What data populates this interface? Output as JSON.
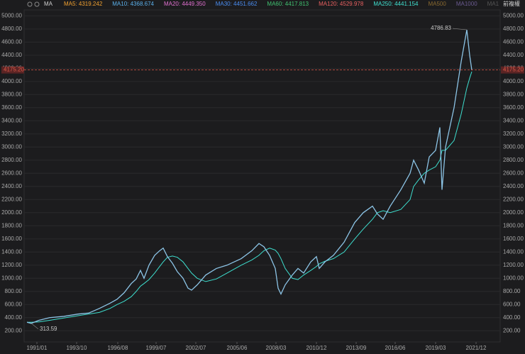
{
  "chart_data": {
    "type": "line",
    "legend": {
      "title": "MA",
      "items": [
        {
          "label": "MA5: 4319.242",
          "color": "#f0a030"
        },
        {
          "label": "MA10: 4368.674",
          "color": "#5aaee8"
        },
        {
          "label": "MA20: 4449.350",
          "color": "#e070d0"
        },
        {
          "label": "MA30: 4451.662",
          "color": "#4a8cf0"
        },
        {
          "label": "MA60: 4417.813",
          "color": "#40c070"
        },
        {
          "label": "MA120: 4529.978",
          "color": "#e86060"
        },
        {
          "label": "MA250: 4441.154",
          "color": "#40e0d0"
        },
        {
          "label": "MA500",
          "color": "#8a6a30"
        },
        {
          "label": "MA1000",
          "color": "#6a5a90"
        },
        {
          "label": "MA1",
          "color": "#555555"
        }
      ]
    },
    "adjust_label": "前複權",
    "x": [
      1990.3,
      1990.6,
      1991.15,
      1991.9,
      1992.9,
      1993.9,
      1994.65,
      1995.4,
      1996.15,
      1996.65,
      1997.15,
      1997.65,
      1998.0,
      1998.3,
      1998.55,
      1998.9,
      1999.3,
      1999.65,
      1999.9,
      2000.2,
      2000.55,
      2000.9,
      2001.3,
      2001.65,
      2001.9,
      2002.3,
      2002.9,
      2003.65,
      2004.4,
      2005.4,
      2006.15,
      2006.65,
      2007.0,
      2007.4,
      2007.8,
      2008.0,
      2008.2,
      2008.5,
      2009.0,
      2009.4,
      2009.8,
      2010.3,
      2010.7,
      2010.9,
      2011.3,
      2011.9,
      2012.65,
      2013.4,
      2014.0,
      2014.65,
      2015.0,
      2015.4,
      2015.9,
      2016.65,
      2017.3,
      2017.55,
      2017.9,
      2018.3,
      2018.65,
      2019.1,
      2019.4,
      2019.55,
      2019.8,
      2020.4,
      2020.9,
      2021.3,
      2021.5,
      2021.65
    ],
    "series": [
      {
        "color": "#8cc4e6",
        "values": [
          330,
          313.59,
          360,
          400,
          420,
          455,
          470,
          540,
          620,
          680,
          780,
          920,
          990,
          1120,
          1000,
          1200,
          1350,
          1420,
          1460,
          1330,
          1230,
          1100,
          1000,
          850,
          820,
          900,
          1050,
          1150,
          1200,
          1300,
          1420,
          1530,
          1480,
          1350,
          1150,
          850,
          760,
          900,
          1050,
          1150,
          1080,
          1250,
          1330,
          1150,
          1250,
          1350,
          1550,
          1850,
          2000,
          2100,
          1980,
          1900,
          2100,
          2350,
          2600,
          2800,
          2650,
          2450,
          2850,
          2950,
          3300,
          2350,
          3000,
          3600,
          4300,
          4786.83,
          4400,
          4175.2
        ]
      },
      {
        "color": "#3ee0d0",
        "values": [
          330,
          330,
          335,
          360,
          395,
          430,
          455,
          480,
          540,
          600,
          650,
          720,
          800,
          880,
          920,
          980,
          1080,
          1180,
          1250,
          1320,
          1340,
          1320,
          1250,
          1150,
          1080,
          1000,
          950,
          990,
          1080,
          1200,
          1280,
          1350,
          1420,
          1460,
          1430,
          1380,
          1300,
          1150,
          1000,
          980,
          1050,
          1120,
          1180,
          1220,
          1260,
          1300,
          1400,
          1600,
          1750,
          1900,
          2000,
          2030,
          2000,
          2050,
          2200,
          2400,
          2500,
          2600,
          2650,
          2700,
          2800,
          2950,
          2950,
          3100,
          3500,
          3900,
          4050,
          4150
        ]
      }
    ],
    "annotations": [
      {
        "x": 2021.3,
        "value": 4786.83,
        "label": "4786.83"
      },
      {
        "x": 1990.6,
        "value": 313.59,
        "label": "313.59"
      }
    ],
    "last_price": {
      "value": 4175.2,
      "label": "4175.20",
      "color": "#e05a4a"
    },
    "xlim": [
      1990.1,
      2023.65
    ],
    "xticks": [
      {
        "value": 1991.0,
        "label": "1991/01"
      },
      {
        "value": 1993.8,
        "label": "1993/10"
      },
      {
        "value": 1996.7,
        "label": "1996/08"
      },
      {
        "value": 1999.4,
        "label": "1999/07"
      },
      {
        "value": 2002.2,
        "label": "2002/07"
      },
      {
        "value": 2005.1,
        "label": "2005/06"
      },
      {
        "value": 2007.85,
        "label": "2008/03"
      },
      {
        "value": 2010.7,
        "label": "2010/12"
      },
      {
        "value": 2013.5,
        "label": "2013/09"
      },
      {
        "value": 2016.25,
        "label": "2016/06"
      },
      {
        "value": 2019.1,
        "label": "2019/03"
      },
      {
        "value": 2021.95,
        "label": "2021/12"
      }
    ],
    "ylim": [
      30,
      5090
    ],
    "yticks": [
      {
        "value": 200,
        "label": "200.00"
      },
      {
        "value": 400,
        "label": "400.00"
      },
      {
        "value": 600,
        "label": "600.00"
      },
      {
        "value": 800,
        "label": "800.00"
      },
      {
        "value": 1000,
        "label": "1000.00"
      },
      {
        "value": 1200,
        "label": "1200.00"
      },
      {
        "value": 1400,
        "label": "1400.00"
      },
      {
        "value": 1600,
        "label": "1600.00"
      },
      {
        "value": 1800,
        "label": "1800.00"
      },
      {
        "value": 2000,
        "label": "2000.00"
      },
      {
        "value": 2200,
        "label": "2200.00"
      },
      {
        "value": 2400,
        "label": "2400.00"
      },
      {
        "value": 2600,
        "label": "2600.00"
      },
      {
        "value": 2800,
        "label": "2800.00"
      },
      {
        "value": 3000,
        "label": "3000.00"
      },
      {
        "value": 3200,
        "label": "3200.00"
      },
      {
        "value": 3400,
        "label": "3400.00"
      },
      {
        "value": 3600,
        "label": "3600.00"
      },
      {
        "value": 3800,
        "label": "3800.00"
      },
      {
        "value": 4000,
        "label": "4000.00"
      },
      {
        "value": 4200,
        "label": "4200.00"
      },
      {
        "value": 4400,
        "label": "4400.00"
      },
      {
        "value": 4600,
        "label": "4600.00"
      },
      {
        "value": 4800,
        "label": "4800.00"
      },
      {
        "value": 5000,
        "label": "5000.00"
      }
    ],
    "grid": true
  }
}
